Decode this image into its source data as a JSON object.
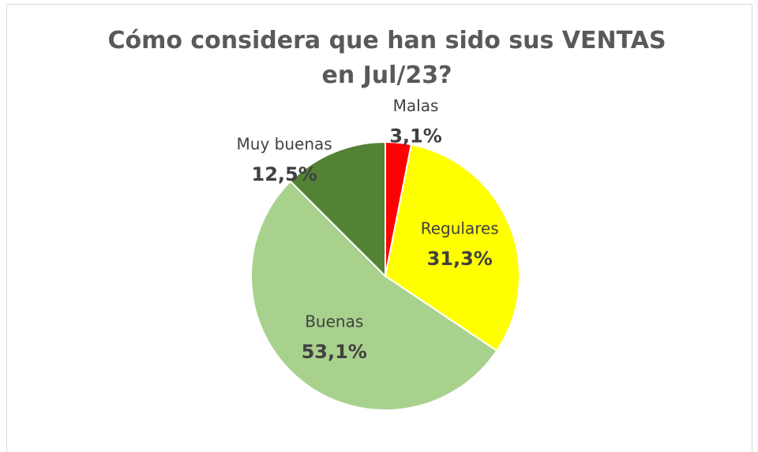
{
  "chart_data": {
    "type": "pie",
    "title": "Cómo considera que han sido sus VENTAS en Jul/23?",
    "categories": [
      "Malas",
      "Regulares",
      "Buenas",
      "Muy buenas"
    ],
    "values": [
      3.1,
      31.3,
      53.1,
      12.5
    ],
    "value_labels": [
      "3,1%",
      "31,3%",
      "53,1%",
      "12,5%"
    ],
    "colors": [
      "#ff0000",
      "#ffff00",
      "#a9d18e",
      "#548235"
    ]
  }
}
